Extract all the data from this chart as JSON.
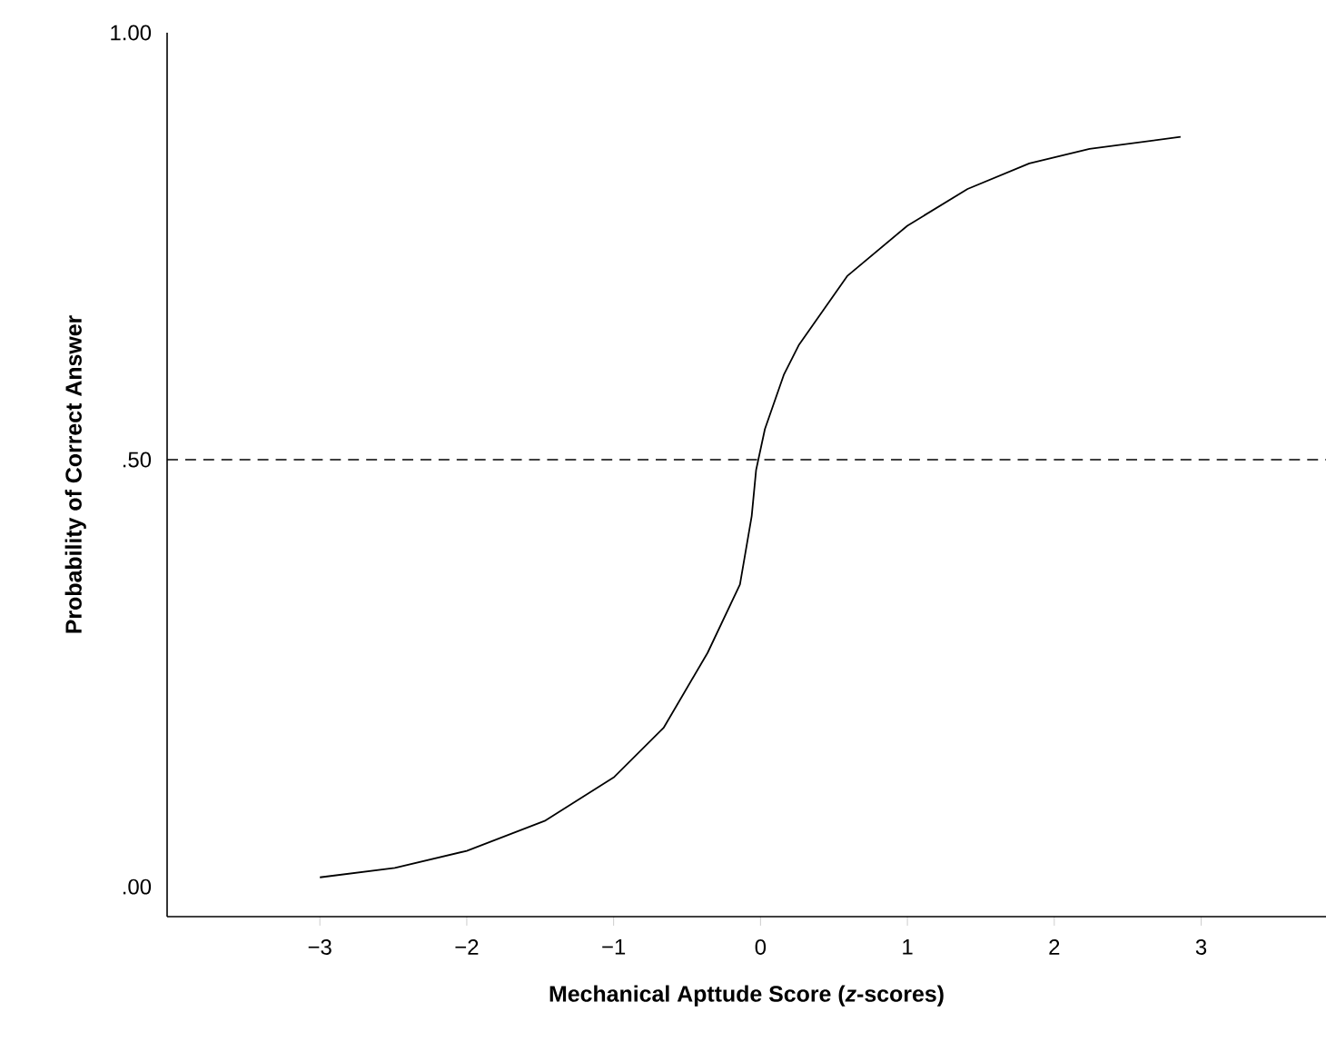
{
  "chart_data": {
    "type": "line",
    "xlabel": "Mechanical Apttude Score (*z*-scores)",
    "ylabel": "Probability of Correct Answer",
    "x": [
      -3,
      -2.49,
      -2,
      -1.47,
      -1,
      -0.66,
      -0.36,
      -0.14,
      -0.06,
      -0.03,
      0.03,
      0.16,
      0.26,
      0.59,
      1.0,
      1.41,
      1.83,
      2.24,
      2.86
    ],
    "series": [
      {
        "color": "#000000",
        "values": [
          0.011,
          0.022,
          0.042,
          0.077,
          0.128,
          0.186,
          0.274,
          0.354,
          0.434,
          0.488,
          0.536,
          0.6,
          0.634,
          0.715,
          0.774,
          0.817,
          0.847,
          0.864,
          0.878
        ]
      }
    ],
    "xlim": [
      -4.04,
      3.85
    ],
    "ylim": [
      -0.035,
      1.0
    ],
    "xticks": [
      {
        "value": -3,
        "label": "−3"
      },
      {
        "value": -2,
        "label": "−2"
      },
      {
        "value": -1,
        "label": "−1"
      },
      0,
      1,
      2,
      3
    ],
    "yticks": [
      {
        "value": 0,
        "label": ".00"
      },
      {
        "value": 0.5,
        "label": ".50"
      },
      {
        "value": 1,
        "label": "1.00"
      }
    ],
    "ref_lines": [
      {
        "axis": "y",
        "value": 0.5,
        "line_style": "dashed"
      }
    ],
    "grid": false,
    "marker": "none",
    "line_style": "solid"
  }
}
